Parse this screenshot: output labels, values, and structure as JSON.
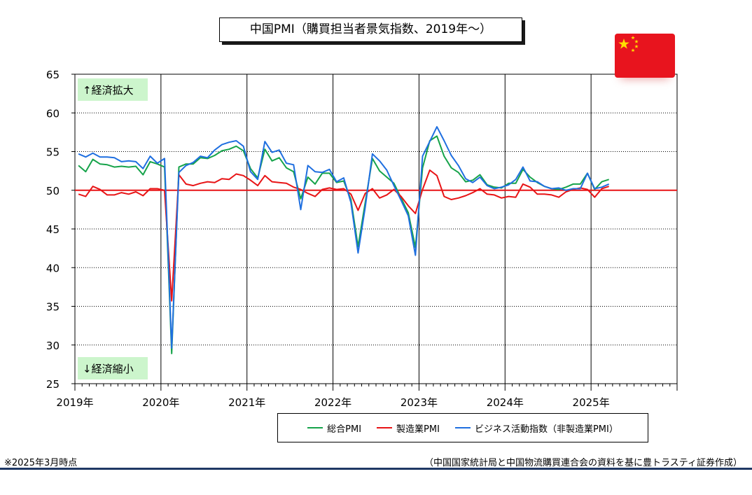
{
  "title": "中国PMI（購買担当者景気指数、2019年～）",
  "footer": {
    "note": "※2025年3月時点",
    "source": "（中国国家統計局と中国物流購買連合会の資料を基に豊トラスティ証券作成）"
  },
  "colors": {
    "composite": "#16a34a",
    "manufacturing": "#e81416",
    "nonmanufacturing": "#1f6fe0",
    "reference": "#e81416",
    "annotation_bg": "#ccf5cc"
  },
  "flag_icon": "china-flag-icon",
  "chart_data": {
    "type": "line",
    "ylim": [
      25,
      65
    ],
    "yticks": [
      "25",
      "30",
      "35",
      "40",
      "45",
      "50",
      "55",
      "60",
      "65"
    ],
    "xticks": [
      "2019年",
      "2020年",
      "2021年",
      "2022年",
      "2023年",
      "2024年",
      "2025年"
    ],
    "x_start": "2019-01",
    "reference_line": 50,
    "annotations": {
      "up": "↑経済拡大",
      "down": "↓経済縮小"
    },
    "series": [
      {
        "name": "総合PMI",
        "key": "composite",
        "values": [
          53.2,
          52.4,
          54.0,
          53.4,
          53.3,
          53.0,
          53.1,
          53.0,
          53.1,
          52.0,
          53.7,
          53.4,
          53.0,
          28.9,
          53.0,
          53.4,
          53.4,
          54.2,
          54.1,
          54.5,
          55.1,
          55.3,
          55.7,
          55.1,
          52.8,
          51.6,
          55.3,
          53.8,
          54.2,
          52.9,
          52.4,
          48.9,
          51.7,
          50.8,
          52.2,
          52.2,
          51.0,
          51.2,
          48.8,
          42.7,
          48.4,
          54.1,
          52.5,
          51.7,
          50.9,
          49.0,
          47.1,
          42.6,
          52.9,
          56.4,
          57.0,
          54.4,
          52.9,
          52.3,
          51.1,
          51.3,
          52.0,
          50.7,
          50.4,
          50.3,
          50.9,
          50.9,
          52.7,
          51.7,
          51.0,
          50.5,
          50.2,
          50.1,
          50.4,
          50.8,
          50.8,
          52.2,
          50.1,
          51.1,
          51.4
        ]
      },
      {
        "name": "製造業PMI",
        "key": "manufacturing",
        "values": [
          49.5,
          49.2,
          50.5,
          50.1,
          49.4,
          49.4,
          49.7,
          49.5,
          49.8,
          49.3,
          50.2,
          50.2,
          50.0,
          35.7,
          52.0,
          50.8,
          50.6,
          50.9,
          51.1,
          51.0,
          51.5,
          51.4,
          52.1,
          51.9,
          51.3,
          50.6,
          51.9,
          51.1,
          51.0,
          50.9,
          50.4,
          50.1,
          49.6,
          49.2,
          50.1,
          50.3,
          50.1,
          50.2,
          49.5,
          47.4,
          49.6,
          50.2,
          49.0,
          49.4,
          50.1,
          49.2,
          48.0,
          47.0,
          50.1,
          52.6,
          51.9,
          49.2,
          48.8,
          49.0,
          49.3,
          49.7,
          50.2,
          49.5,
          49.4,
          49.0,
          49.2,
          49.1,
          50.8,
          50.4,
          49.5,
          49.5,
          49.4,
          49.1,
          49.8,
          50.1,
          50.3,
          50.1,
          49.1,
          50.2,
          50.5
        ]
      },
      {
        "name": "ビジネス活動指数（非製造業PMI）",
        "key": "nonmanufacturing",
        "values": [
          54.7,
          54.3,
          54.8,
          54.3,
          54.3,
          54.2,
          53.7,
          53.8,
          53.7,
          52.8,
          54.4,
          53.5,
          54.1,
          29.6,
          52.3,
          53.2,
          53.6,
          54.4,
          54.2,
          55.2,
          55.9,
          56.2,
          56.4,
          55.7,
          52.4,
          51.4,
          56.3,
          54.9,
          55.2,
          53.5,
          53.3,
          47.5,
          53.2,
          52.4,
          52.3,
          52.7,
          51.1,
          51.6,
          48.4,
          41.9,
          47.8,
          54.7,
          53.8,
          52.6,
          50.6,
          48.7,
          46.7,
          41.6,
          54.4,
          56.3,
          58.2,
          56.4,
          54.5,
          53.2,
          51.5,
          51.0,
          51.7,
          50.6,
          50.2,
          50.4,
          50.7,
          51.4,
          53.0,
          51.2,
          51.1,
          50.5,
          50.2,
          50.3,
          50.0,
          50.2,
          50.2,
          52.2,
          50.2,
          50.4,
          50.8
        ]
      }
    ]
  }
}
